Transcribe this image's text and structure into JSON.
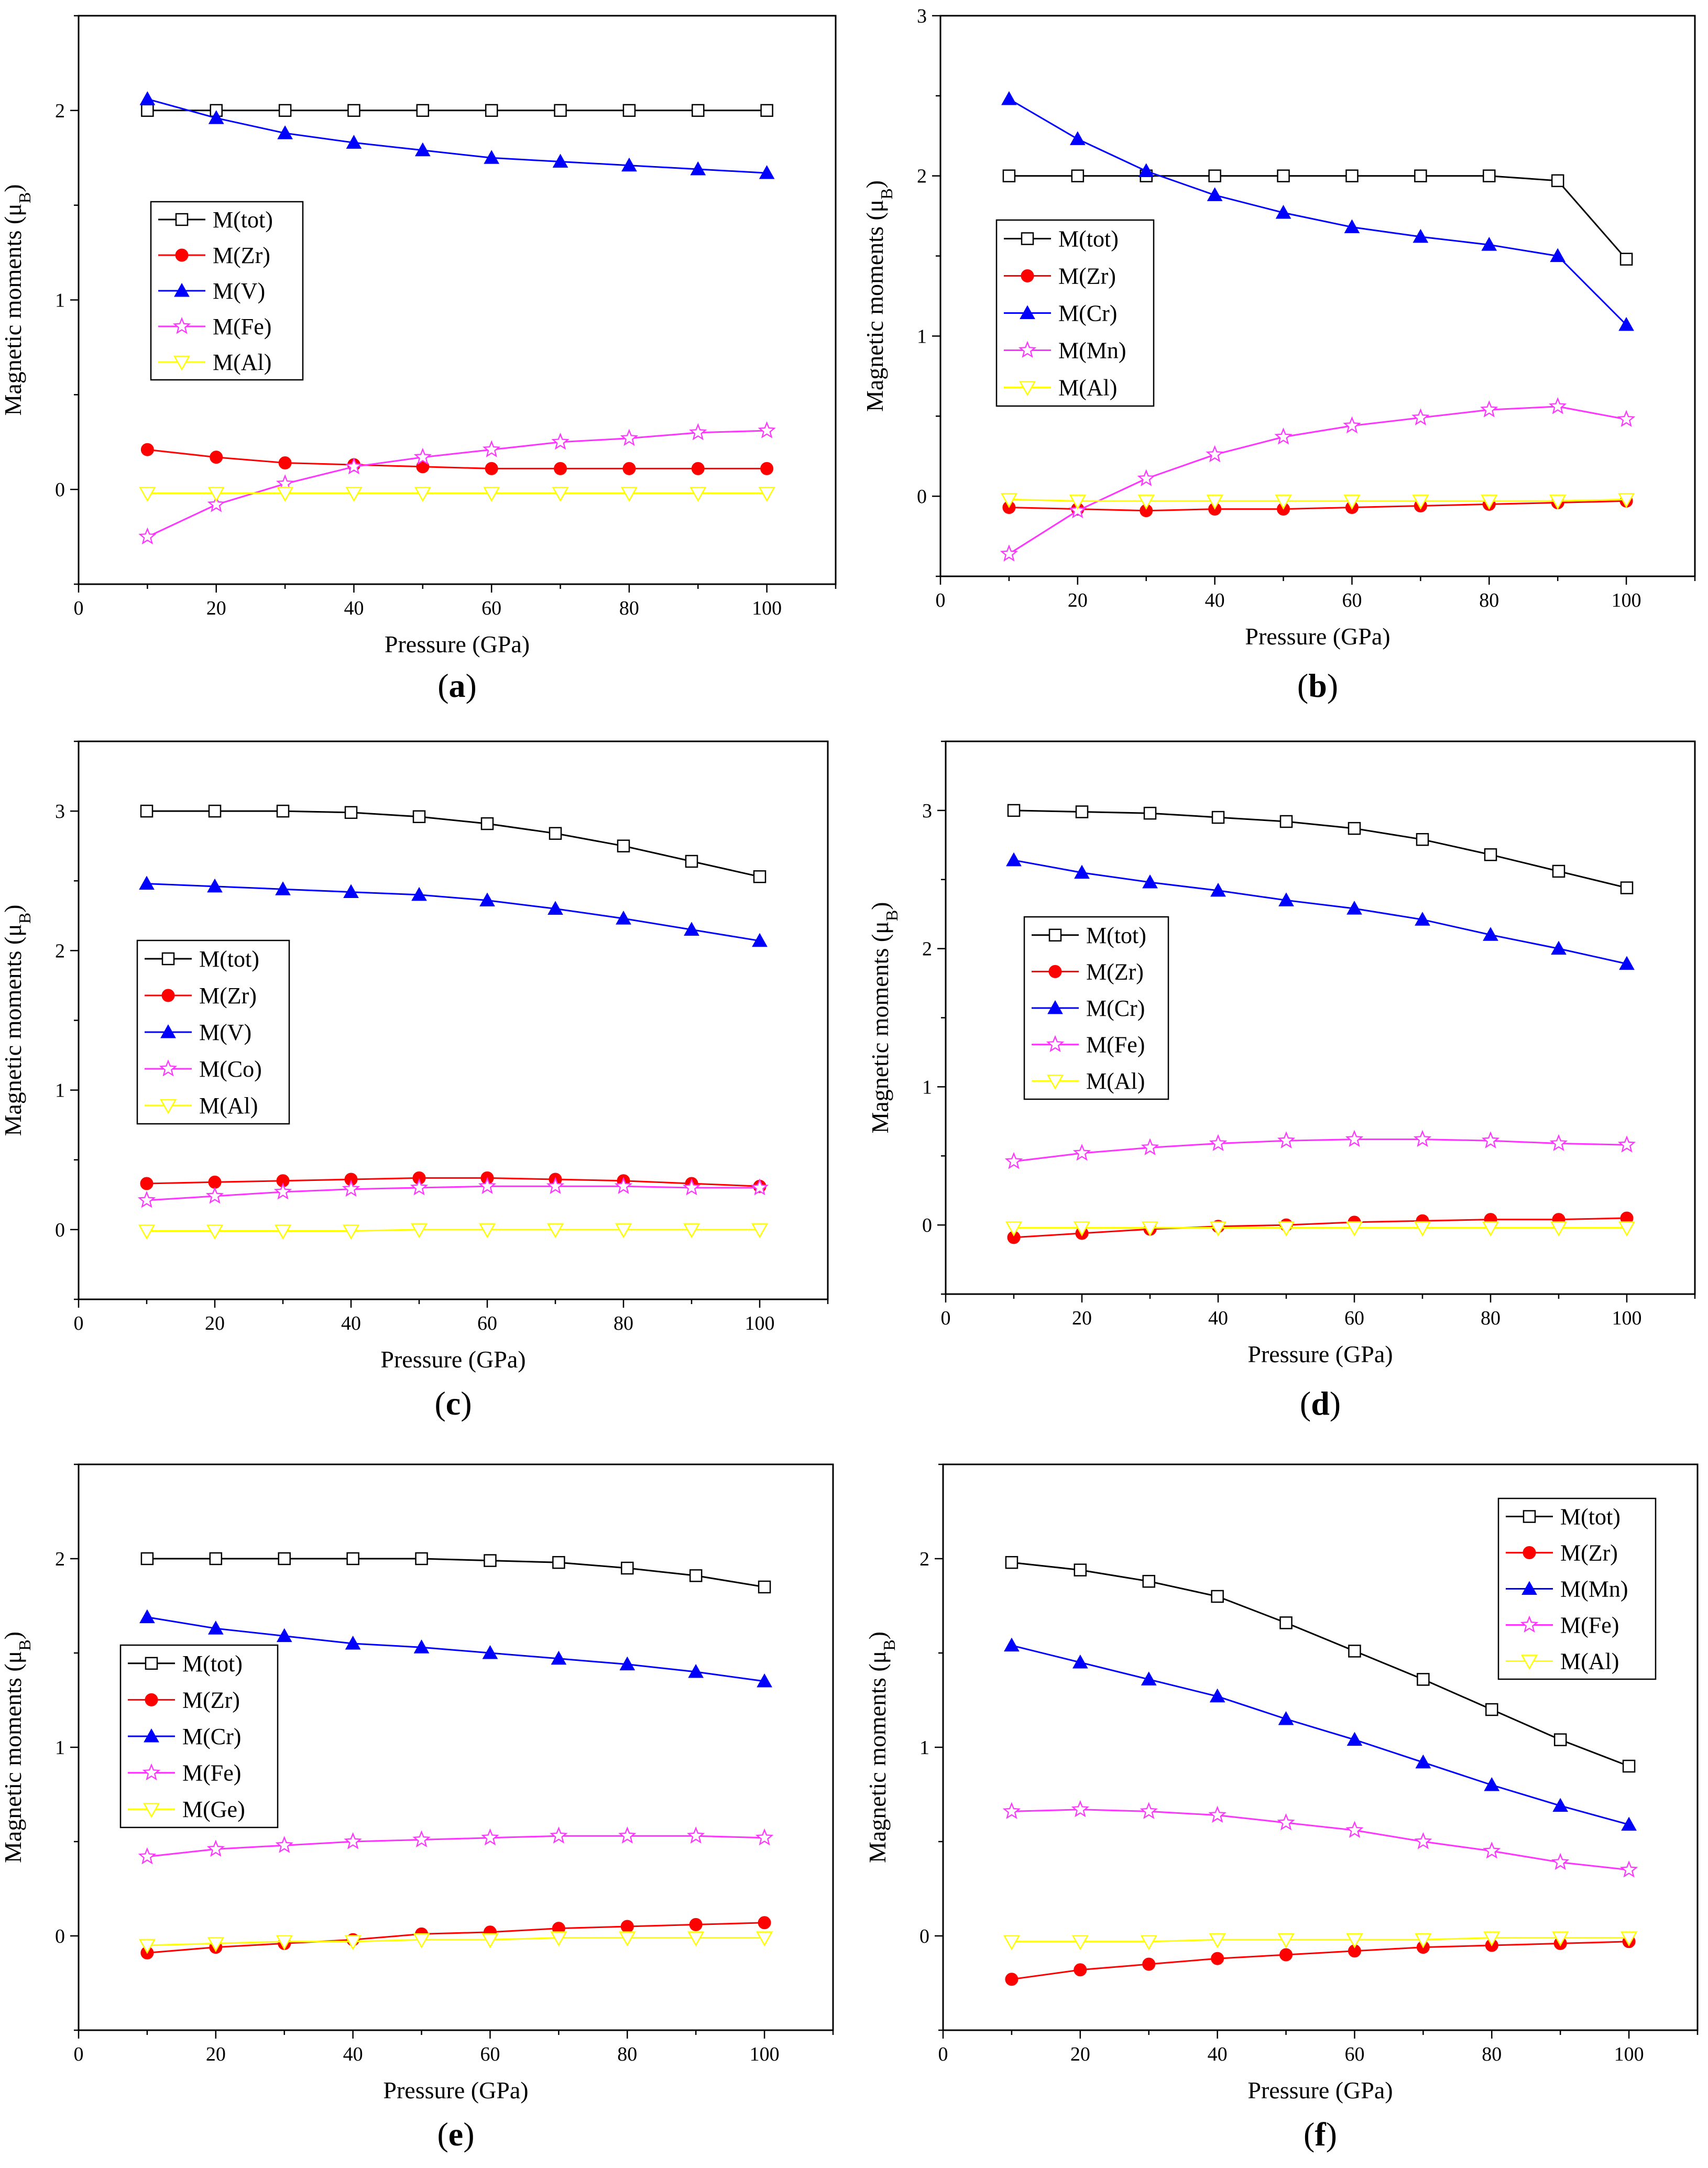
{
  "figure": {
    "x": [
      10,
      20,
      30,
      40,
      50,
      60,
      70,
      80,
      90,
      100
    ],
    "xlabel": "Pressure (GPa)",
    "ylabel_main": "Magnetic moments (μ",
    "ylabel_sub": "B",
    "ylabel_close": ")",
    "series_colors": [
      "#000000",
      "#ff0000",
      "#0000ff",
      "#ff33ff",
      "#ffff00"
    ],
    "series_markers": [
      "open-square",
      "filled-circle",
      "filled-triangle-up",
      "open-star",
      "open-triangle-down"
    ]
  },
  "chart_data": [
    {
      "type": "line",
      "panel": "a",
      "caption_letter": "a",
      "xlim": [
        0,
        110
      ],
      "ylim": [
        -0.5,
        2.5
      ],
      "xticks": [
        0,
        20,
        40,
        60,
        80,
        100
      ],
      "yticks": [
        0,
        1,
        2
      ],
      "xlabel": "Pressure (GPa)",
      "ylabel": "Magnetic moments (μB)",
      "legend_position": "middle-left",
      "series": [
        {
          "name": "M(tot)",
          "values": [
            2.0,
            2.0,
            2.0,
            2.0,
            2.0,
            2.0,
            2.0,
            2.0,
            2.0,
            2.0
          ]
        },
        {
          "name": "M(Zr)",
          "values": [
            0.21,
            0.17,
            0.14,
            0.13,
            0.12,
            0.11,
            0.11,
            0.11,
            0.11,
            0.11
          ]
        },
        {
          "name": "M(V)",
          "values": [
            2.06,
            1.96,
            1.88,
            1.83,
            1.79,
            1.75,
            1.73,
            1.71,
            1.69,
            1.67
          ]
        },
        {
          "name": "M(Fe)",
          "values": [
            -0.25,
            -0.08,
            0.03,
            0.12,
            0.17,
            0.21,
            0.25,
            0.27,
            0.3,
            0.31
          ]
        },
        {
          "name": "M(Al)",
          "values": [
            -0.02,
            -0.02,
            -0.02,
            -0.02,
            -0.02,
            -0.02,
            -0.02,
            -0.02,
            -0.02,
            -0.02
          ]
        }
      ]
    },
    {
      "type": "line",
      "panel": "b",
      "caption_letter": "b",
      "xlim": [
        0,
        110
      ],
      "ylim": [
        -0.5,
        3
      ],
      "xticks": [
        0,
        20,
        40,
        60,
        80,
        100
      ],
      "yticks": [
        0,
        1,
        2,
        3
      ],
      "xlabel": "Pressure (GPa)",
      "ylabel": "Magnetic moments (μB)",
      "legend_position": "middle-left",
      "series": [
        {
          "name": "M(tot)",
          "values": [
            2.0,
            2.0,
            2.0,
            2.0,
            2.0,
            2.0,
            2.0,
            2.0,
            1.97,
            1.48
          ]
        },
        {
          "name": "M(Zr)",
          "values": [
            -0.07,
            -0.08,
            -0.09,
            -0.08,
            -0.08,
            -0.07,
            -0.06,
            -0.05,
            -0.04,
            -0.03
          ]
        },
        {
          "name": "M(Cr)",
          "values": [
            2.48,
            2.23,
            2.03,
            1.88,
            1.77,
            1.68,
            1.62,
            1.57,
            1.5,
            1.07
          ]
        },
        {
          "name": "M(Mn)",
          "values": [
            -0.36,
            -0.09,
            0.11,
            0.26,
            0.37,
            0.44,
            0.49,
            0.54,
            0.56,
            0.48
          ]
        },
        {
          "name": "M(Al)",
          "values": [
            -0.02,
            -0.03,
            -0.03,
            -0.03,
            -0.03,
            -0.03,
            -0.03,
            -0.03,
            -0.03,
            -0.02
          ]
        }
      ]
    },
    {
      "type": "line",
      "panel": "c",
      "caption_letter": "c",
      "xlim": [
        0,
        110
      ],
      "ylim": [
        -0.5,
        3.5
      ],
      "xticks": [
        0,
        20,
        40,
        60,
        80,
        100
      ],
      "yticks": [
        0,
        1,
        2,
        3
      ],
      "xlabel": "Pressure (GPa)",
      "ylabel": "Magnetic moments (μB)",
      "legend_position": "middle-left",
      "series": [
        {
          "name": "M(tot)",
          "values": [
            3.0,
            3.0,
            3.0,
            2.99,
            2.96,
            2.91,
            2.84,
            2.75,
            2.64,
            2.53
          ]
        },
        {
          "name": "M(Zr)",
          "values": [
            0.33,
            0.34,
            0.35,
            0.36,
            0.37,
            0.37,
            0.36,
            0.35,
            0.33,
            0.31
          ]
        },
        {
          "name": "M(V)",
          "values": [
            2.48,
            2.46,
            2.44,
            2.42,
            2.4,
            2.36,
            2.3,
            2.23,
            2.15,
            2.07
          ]
        },
        {
          "name": "M(Co)",
          "values": [
            0.21,
            0.24,
            0.27,
            0.29,
            0.3,
            0.31,
            0.31,
            0.31,
            0.3,
            0.3
          ]
        },
        {
          "name": "M(Al)",
          "values": [
            -0.01,
            -0.01,
            -0.01,
            -0.01,
            0.0,
            0.0,
            0.0,
            0.0,
            0.0,
            0.0
          ]
        }
      ]
    },
    {
      "type": "line",
      "panel": "d",
      "caption_letter": "d",
      "xlim": [
        0,
        110
      ],
      "ylim": [
        -0.5,
        3.5
      ],
      "xticks": [
        0,
        20,
        40,
        60,
        80,
        100
      ],
      "yticks": [
        0,
        1,
        2,
        3
      ],
      "xlabel": "Pressure (GPa)",
      "ylabel": "Magnetic moments (μB)",
      "legend_position": "middle-left",
      "series": [
        {
          "name": "M(tot)",
          "values": [
            3.0,
            2.99,
            2.98,
            2.95,
            2.92,
            2.87,
            2.79,
            2.68,
            2.56,
            2.44
          ]
        },
        {
          "name": "M(Zr)",
          "values": [
            -0.09,
            -0.06,
            -0.03,
            -0.01,
            0.0,
            0.02,
            0.03,
            0.04,
            0.04,
            0.05
          ]
        },
        {
          "name": "M(Cr)",
          "values": [
            2.64,
            2.55,
            2.48,
            2.42,
            2.35,
            2.29,
            2.21,
            2.1,
            2.0,
            1.89
          ]
        },
        {
          "name": "M(Fe)",
          "values": [
            0.46,
            0.52,
            0.56,
            0.59,
            0.61,
            0.62,
            0.62,
            0.61,
            0.59,
            0.58
          ]
        },
        {
          "name": "M(Al)",
          "values": [
            -0.02,
            -0.02,
            -0.02,
            -0.02,
            -0.02,
            -0.02,
            -0.02,
            -0.02,
            -0.02,
            -0.02
          ]
        }
      ]
    },
    {
      "type": "line",
      "panel": "e",
      "caption_letter": "e",
      "xlim": [
        0,
        110
      ],
      "ylim": [
        -0.5,
        2.5
      ],
      "xticks": [
        0,
        20,
        40,
        60,
        80,
        100
      ],
      "yticks": [
        0,
        1,
        2
      ],
      "xlabel": "Pressure (GPa)",
      "ylabel": "Magnetic moments (μB)",
      "legend_position": "middle-left",
      "series": [
        {
          "name": "M(tot)",
          "values": [
            2.0,
            2.0,
            2.0,
            2.0,
            2.0,
            1.99,
            1.98,
            1.95,
            1.91,
            1.85
          ]
        },
        {
          "name": "M(Zr)",
          "values": [
            -0.09,
            -0.06,
            -0.04,
            -0.02,
            0.01,
            0.02,
            0.04,
            0.05,
            0.06,
            0.07
          ]
        },
        {
          "name": "M(Cr)",
          "values": [
            1.69,
            1.63,
            1.59,
            1.55,
            1.53,
            1.5,
            1.47,
            1.44,
            1.4,
            1.35
          ]
        },
        {
          "name": "M(Fe)",
          "values": [
            0.42,
            0.46,
            0.48,
            0.5,
            0.51,
            0.52,
            0.53,
            0.53,
            0.53,
            0.52
          ]
        },
        {
          "name": "M(Ge)",
          "values": [
            -0.05,
            -0.04,
            -0.03,
            -0.03,
            -0.02,
            -0.02,
            -0.01,
            -0.01,
            -0.01,
            -0.01
          ]
        }
      ]
    },
    {
      "type": "line",
      "panel": "f",
      "caption_letter": "f",
      "xlim": [
        0,
        110
      ],
      "ylim": [
        -0.5,
        2.5
      ],
      "xticks": [
        0,
        20,
        40,
        60,
        80,
        100
      ],
      "yticks": [
        0,
        1,
        2
      ],
      "xlabel": "Pressure (GPa)",
      "ylabel": "Magnetic moments (μB)",
      "legend_position": "top-right",
      "series": [
        {
          "name": "M(tot)",
          "values": [
            1.98,
            1.94,
            1.88,
            1.8,
            1.66,
            1.51,
            1.36,
            1.2,
            1.04,
            0.9
          ]
        },
        {
          "name": "M(Zr)",
          "values": [
            -0.23,
            -0.18,
            -0.15,
            -0.12,
            -0.1,
            -0.08,
            -0.06,
            -0.05,
            -0.04,
            -0.03
          ]
        },
        {
          "name": "M(Mn)",
          "values": [
            1.54,
            1.45,
            1.36,
            1.27,
            1.15,
            1.04,
            0.92,
            0.8,
            0.69,
            0.59
          ]
        },
        {
          "name": "M(Fe)",
          "values": [
            0.66,
            0.67,
            0.66,
            0.64,
            0.6,
            0.56,
            0.5,
            0.45,
            0.39,
            0.35
          ]
        },
        {
          "name": "M(Al)",
          "values": [
            -0.03,
            -0.03,
            -0.03,
            -0.02,
            -0.02,
            -0.02,
            -0.02,
            -0.01,
            -0.01,
            -0.01
          ]
        }
      ]
    }
  ]
}
